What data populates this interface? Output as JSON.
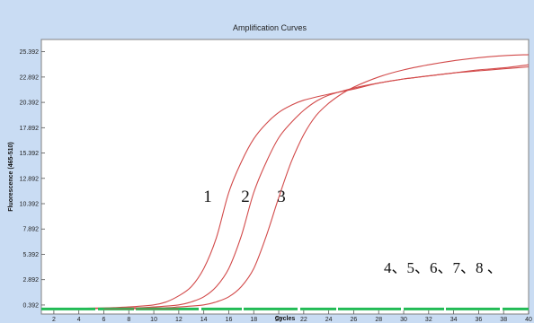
{
  "colors": {
    "frame_bg": "#c9dcf3",
    "plot_bg": "#ffffff",
    "curve_amplified": "#d24a4a",
    "curve_flat": "#22bb55"
  },
  "chart_data": {
    "type": "line",
    "title": "Amplification Curves",
    "xlabel": "Cycles",
    "ylabel": "Fluorescence (465-510)",
    "xlim": [
      1,
      40
    ],
    "ylim": [
      -0.5,
      26.6
    ],
    "x_ticks": [
      "2",
      "4",
      "6",
      "8",
      "10",
      "12",
      "14",
      "16",
      "18",
      "20",
      "22",
      "24",
      "26",
      "28",
      "30",
      "32",
      "34",
      "36",
      "38",
      "40"
    ],
    "y_ticks": [
      "25.392",
      "22.892",
      "20.392",
      "17.892",
      "15.392",
      "12.892",
      "10.392",
      "7.892",
      "5.392",
      "2.892",
      "0.392"
    ],
    "grid": false,
    "legend": "none",
    "series": [
      {
        "name": "1",
        "points": [
          [
            1,
            0.0
          ],
          [
            6,
            0.1
          ],
          [
            8,
            0.2
          ],
          [
            10,
            0.4
          ],
          [
            11,
            0.7
          ],
          [
            12,
            1.3
          ],
          [
            13,
            2.2
          ],
          [
            14,
            4.0
          ],
          [
            15,
            7.0
          ],
          [
            16,
            11.5
          ],
          [
            17,
            14.5
          ],
          [
            18,
            16.8
          ],
          [
            19,
            18.3
          ],
          [
            20,
            19.4
          ],
          [
            21,
            20.1
          ],
          [
            22,
            20.6
          ],
          [
            24,
            21.2
          ],
          [
            26,
            21.7
          ],
          [
            28,
            22.3
          ],
          [
            30,
            22.7
          ],
          [
            32,
            23.0
          ],
          [
            34,
            23.3
          ],
          [
            36,
            23.6
          ],
          [
            38,
            23.8
          ],
          [
            40,
            24.1
          ]
        ]
      },
      {
        "name": "2",
        "points": [
          [
            1,
            0.0
          ],
          [
            8,
            0.1
          ],
          [
            10,
            0.2
          ],
          [
            12,
            0.4
          ],
          [
            13,
            0.7
          ],
          [
            14,
            1.2
          ],
          [
            15,
            2.2
          ],
          [
            16,
            4.0
          ],
          [
            17,
            7.2
          ],
          [
            18,
            11.5
          ],
          [
            19,
            14.5
          ],
          [
            20,
            16.9
          ],
          [
            21,
            18.4
          ],
          [
            22,
            19.6
          ],
          [
            23,
            20.5
          ],
          [
            24,
            21.1
          ],
          [
            26,
            21.8
          ],
          [
            28,
            22.3
          ],
          [
            30,
            22.7
          ],
          [
            32,
            23.0
          ],
          [
            34,
            23.3
          ],
          [
            36,
            23.5
          ],
          [
            38,
            23.7
          ],
          [
            40,
            23.9
          ]
        ]
      },
      {
        "name": "3",
        "points": [
          [
            1,
            0.0
          ],
          [
            10,
            0.1
          ],
          [
            12,
            0.2
          ],
          [
            14,
            0.4
          ],
          [
            15,
            0.7
          ],
          [
            16,
            1.2
          ],
          [
            17,
            2.2
          ],
          [
            18,
            4.0
          ],
          [
            19,
            7.2
          ],
          [
            20,
            11.0
          ],
          [
            21,
            14.5
          ],
          [
            22,
            17.2
          ],
          [
            23,
            19.1
          ],
          [
            24,
            20.3
          ],
          [
            25,
            21.2
          ],
          [
            26,
            21.9
          ],
          [
            28,
            22.9
          ],
          [
            30,
            23.6
          ],
          [
            32,
            24.1
          ],
          [
            34,
            24.5
          ],
          [
            36,
            24.8
          ],
          [
            38,
            25.0
          ],
          [
            40,
            25.1
          ]
        ]
      },
      {
        "name": "4、5、6、7、8 、",
        "points": [
          [
            1,
            0.0
          ],
          [
            40,
            0.0
          ]
        ]
      }
    ],
    "annotations": [
      "1",
      "2",
      "3",
      "4、5、6、7、8 、"
    ]
  }
}
